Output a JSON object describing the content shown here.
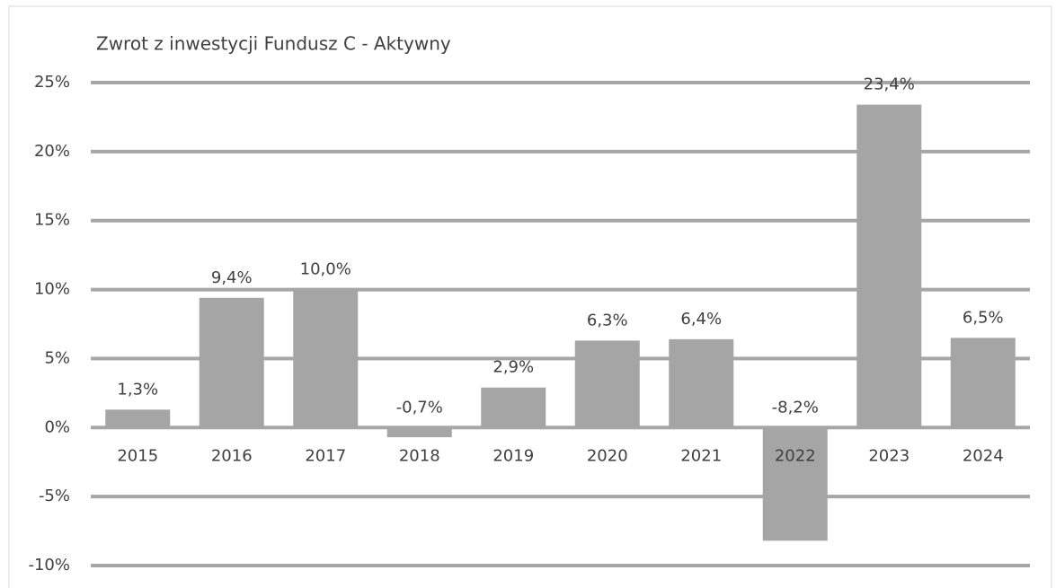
{
  "chart_data": {
    "type": "bar",
    "title": "Zwrot z inwestycji Fundusz C - Aktywny",
    "categories": [
      "2015",
      "2016",
      "2017",
      "2018",
      "2019",
      "2020",
      "2021",
      "2022",
      "2023",
      "2024"
    ],
    "values": [
      1.3,
      9.4,
      10.0,
      -0.7,
      2.9,
      6.3,
      6.4,
      -8.2,
      23.4,
      6.5
    ],
    "value_labels": [
      "1,3%",
      "9,4%",
      "10,0%",
      "-0,7%",
      "2,9%",
      "6,3%",
      "6,4%",
      "-8,2%",
      "23,4%",
      "6,5%"
    ],
    "color": "#a5a5a5",
    "ylim": [
      -10,
      25
    ],
    "yticks": [
      {
        "value": -10,
        "label": "-10%"
      },
      {
        "value": -5,
        "label": "-5%"
      },
      {
        "value": 0,
        "label": "0%"
      },
      {
        "value": 5,
        "label": "5%"
      },
      {
        "value": 10,
        "label": "10%"
      },
      {
        "value": 15,
        "label": "15%"
      },
      {
        "value": 20,
        "label": "20%"
      },
      {
        "value": 25,
        "label": "25%"
      }
    ],
    "grid": true
  }
}
